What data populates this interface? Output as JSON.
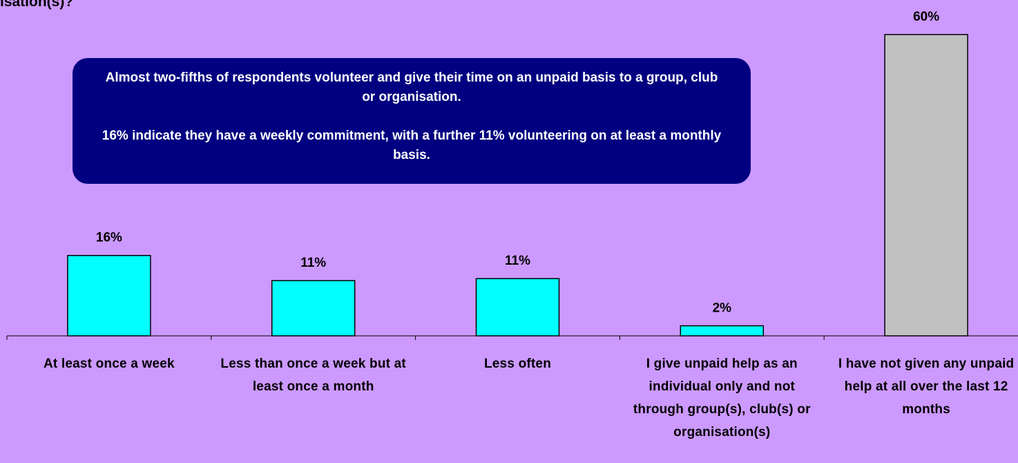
{
  "chart_data": {
    "type": "bar",
    "title": "isation(s)?",
    "annotation": [
      "Almost two-fifths of respondents volunteer and give their time on an unpaid basis to a group, club or organisation.",
      "16% indicate they have a weekly commitment, with a further 11% volunteering on at least a monthly basis."
    ],
    "categories": [
      "At least once a week",
      "Less than once a week but at least once a month",
      "Less often",
      "I give unpaid help as an individual only and not through group(s), club(s) or organisation(s)",
      "I have not given any unpaid help at all over the last 12 months"
    ],
    "values": [
      16,
      11,
      11.4,
      2,
      60
    ],
    "value_labels": [
      "16%",
      "11%",
      "11%",
      "2%",
      "60%"
    ],
    "colors": [
      "#00ffff",
      "#00ffff",
      "#00ffff",
      "#00ffff",
      "#c0c0c0"
    ]
  }
}
